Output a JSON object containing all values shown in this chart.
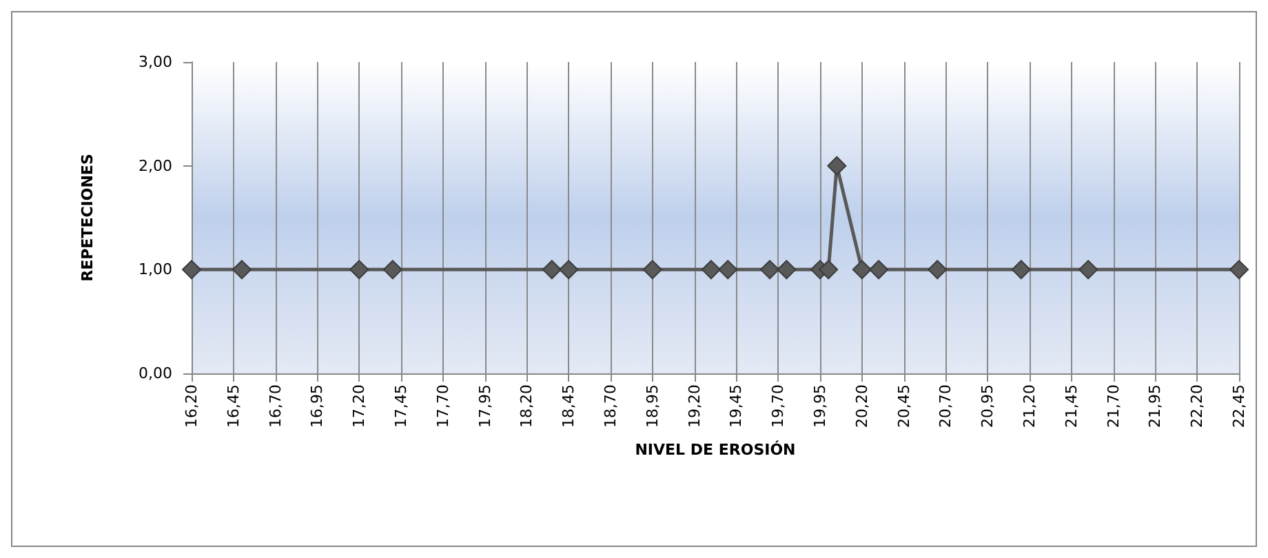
{
  "chart_data": {
    "type": "line",
    "xlabel": "NIVEL DE EROSIÓN",
    "ylabel": "REPETECIONES",
    "x": [
      16.2,
      16.5,
      17.2,
      17.4,
      18.35,
      18.45,
      18.95,
      19.3,
      19.4,
      19.65,
      19.75,
      19.95,
      20.0,
      20.05,
      20.2,
      20.3,
      20.65,
      21.15,
      21.55,
      22.45
    ],
    "series": [
      {
        "color": "#595959",
        "values": [
          1,
          1,
          1,
          1,
          1,
          1,
          1,
          1,
          1,
          1,
          1,
          1,
          1,
          2,
          1,
          1,
          1,
          1,
          1,
          1
        ]
      }
    ],
    "xlim": [
      16.2,
      22.45
    ],
    "xticks": [
      {
        "value": 16.2,
        "label": "16,20"
      },
      {
        "value": 16.45,
        "label": "16,45"
      },
      {
        "value": 16.7,
        "label": "16,70"
      },
      {
        "value": 16.95,
        "label": "16,95"
      },
      {
        "value": 17.2,
        "label": "17,20"
      },
      {
        "value": 17.45,
        "label": "17,45"
      },
      {
        "value": 17.7,
        "label": "17,70"
      },
      {
        "value": 17.95,
        "label": "17,95"
      },
      {
        "value": 18.2,
        "label": "18,20"
      },
      {
        "value": 18.45,
        "label": "18,45"
      },
      {
        "value": 18.7,
        "label": "18,70"
      },
      {
        "value": 18.95,
        "label": "18,95"
      },
      {
        "value": 19.2,
        "label": "19,20"
      },
      {
        "value": 19.45,
        "label": "19,45"
      },
      {
        "value": 19.7,
        "label": "19,70"
      },
      {
        "value": 19.95,
        "label": "19,95"
      },
      {
        "value": 20.2,
        "label": "20,20"
      },
      {
        "value": 20.45,
        "label": "20,45"
      },
      {
        "value": 20.7,
        "label": "20,70"
      },
      {
        "value": 20.95,
        "label": "20,95"
      },
      {
        "value": 21.2,
        "label": "21,20"
      },
      {
        "value": 21.45,
        "label": "21,45"
      },
      {
        "value": 21.7,
        "label": "21,70"
      },
      {
        "value": 21.95,
        "label": "21,95"
      },
      {
        "value": 22.2,
        "label": "22,20"
      },
      {
        "value": 22.45,
        "label": "22,45"
      }
    ],
    "ylim": [
      0,
      3
    ],
    "yticks": [
      {
        "value": 0,
        "label": "0,00"
      },
      {
        "value": 1,
        "label": "1,00"
      },
      {
        "value": 2,
        "label": "2,00"
      },
      {
        "value": 3,
        "label": "3,00"
      }
    ],
    "grid": "x",
    "marker": "diamond",
    "line_style": "solid"
  }
}
